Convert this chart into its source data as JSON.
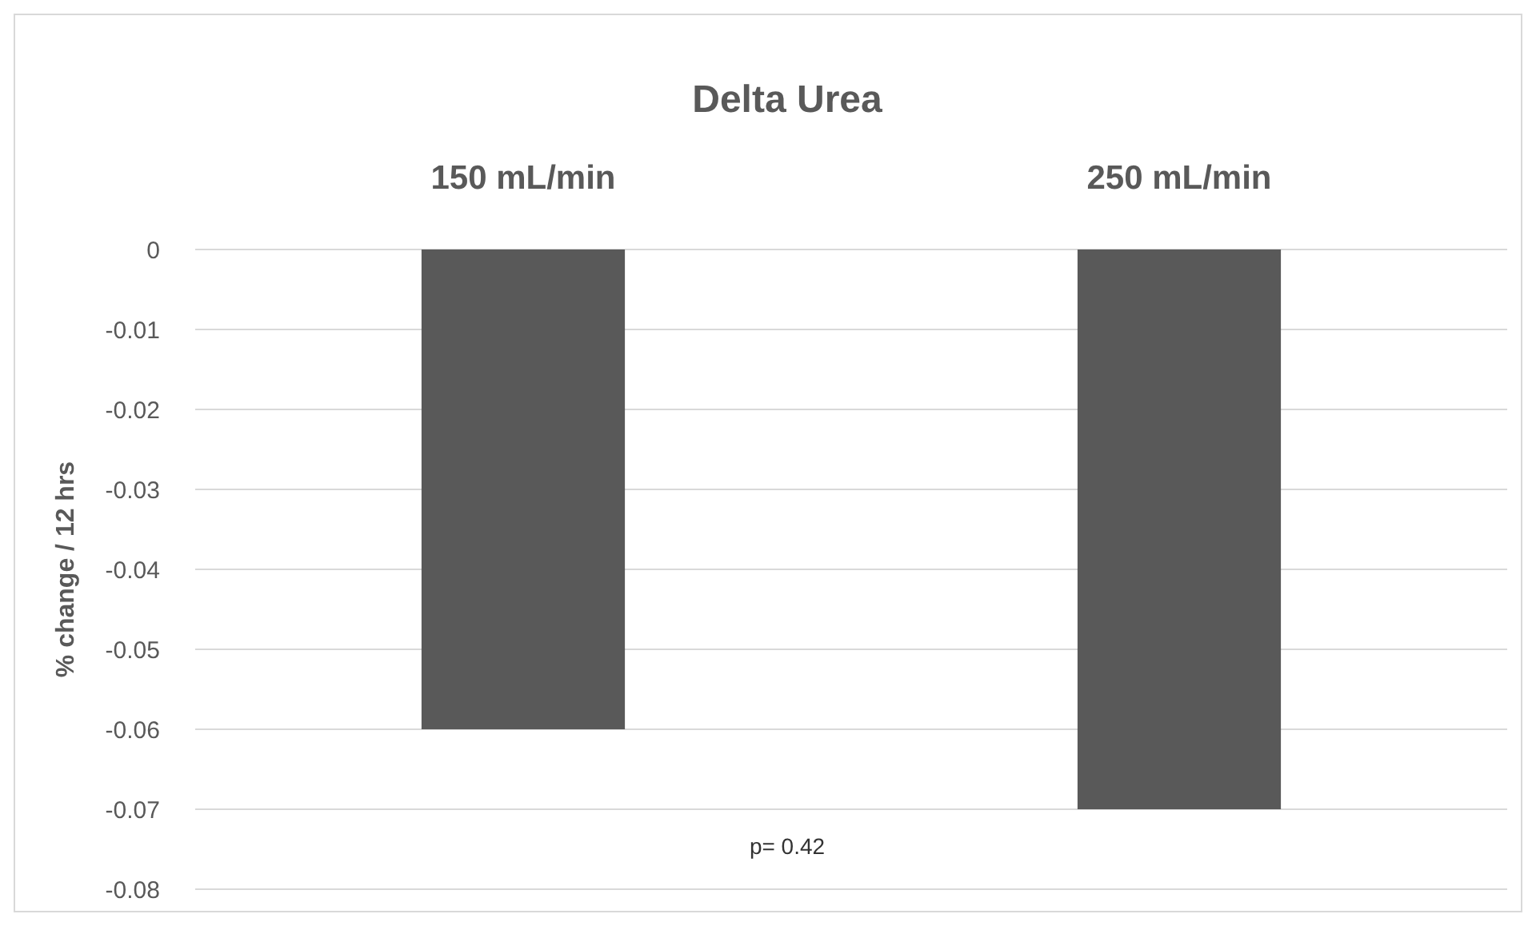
{
  "chart_data": {
    "type": "bar",
    "title": "Delta Urea",
    "ylabel": "% change / 12 hrs",
    "categories": [
      "150 mL/min",
      "250 mL/min"
    ],
    "series": [
      {
        "color": "#595959",
        "values": [
          -0.06,
          -0.07
        ]
      }
    ],
    "ylim": [
      -0.08,
      0
    ],
    "yticks": [
      -0.08,
      -0.07,
      -0.06,
      -0.05,
      -0.04,
      -0.03,
      -0.02,
      -0.01,
      0
    ],
    "grid": "y",
    "annotations": [
      "p= 0.42"
    ]
  }
}
